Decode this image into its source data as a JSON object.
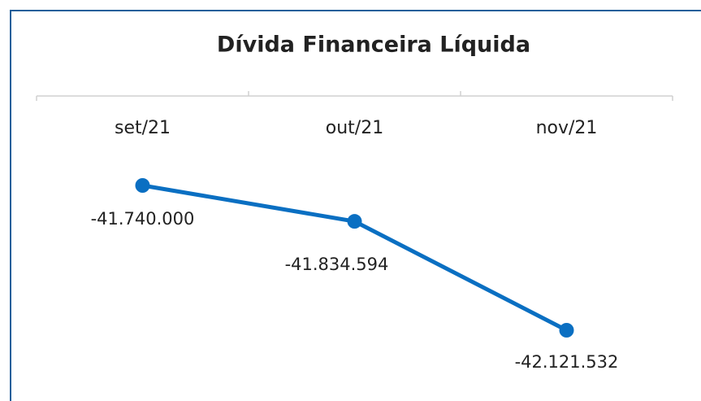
{
  "chart_data": {
    "type": "line",
    "title": "Dívida Financeira Líquida",
    "categories": [
      "set/21",
      "out/21",
      "nov/21"
    ],
    "values": [
      -41740000,
      -41834594,
      -42121532
    ],
    "value_labels": [
      "-41.740.000",
      "-41.834.594",
      "-42.121.532"
    ],
    "color": "#0a6fc2"
  }
}
